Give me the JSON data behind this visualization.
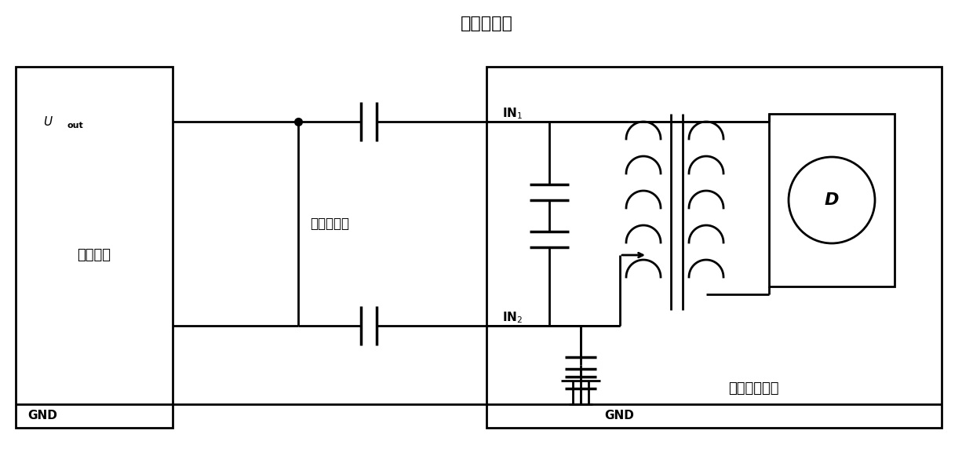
{
  "title": "标准电容器",
  "title_fontsize": 16,
  "bg_color": "#ffffff",
  "line_color": "#000000",
  "lw": 2.0,
  "labels": {
    "Uout": "U_out",
    "GND_left": "GND",
    "IN1": "IN₁",
    "IN2": "IN₂",
    "GND_right": "GND",
    "left_box": "高压电源",
    "mid_box": "被测电容器",
    "right_box": "高压电容电桥",
    "D_label": "D"
  }
}
